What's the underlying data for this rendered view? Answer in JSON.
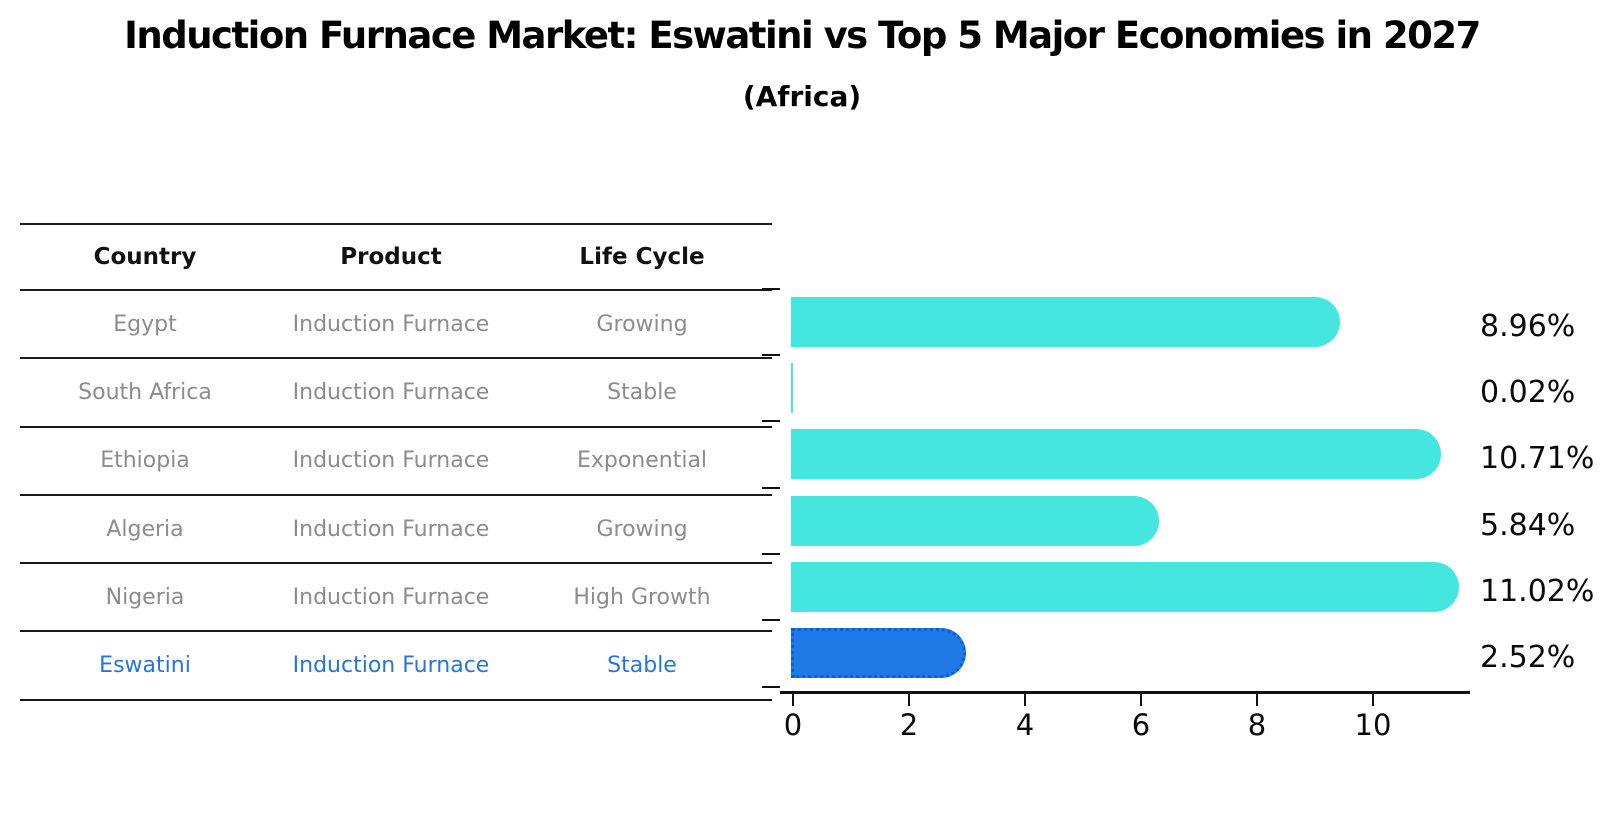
{
  "title": "Induction Furnace Market: Eswatini vs Top 5 Major Economies in 2027",
  "subtitle": "(Africa)",
  "table": {
    "headers": [
      "Country",
      "Product",
      "Life Cycle"
    ],
    "rows": [
      {
        "country": "Egypt",
        "product": "Induction Furnace",
        "life_cycle": "Growing"
      },
      {
        "country": "South Africa",
        "product": "Induction Furnace",
        "life_cycle": "Stable"
      },
      {
        "country": "Ethiopia",
        "product": "Induction Furnace",
        "life_cycle": "Exponential"
      },
      {
        "country": "Algeria",
        "product": "Induction Furnace",
        "life_cycle": "Growing"
      },
      {
        "country": "Nigeria",
        "product": "Induction Furnace",
        "life_cycle": "High Growth"
      },
      {
        "country": "Eswatini",
        "product": "Induction Furnace",
        "life_cycle": "Stable"
      }
    ]
  },
  "chart_data": {
    "type": "bar",
    "orientation": "horizontal",
    "title": "Induction Furnace Market: Eswatini vs Top 5 Major Economies in 2027 (Africa)",
    "categories": [
      "Egypt",
      "South Africa",
      "Ethiopia",
      "Algeria",
      "Nigeria",
      "Eswatini"
    ],
    "values": [
      8.96,
      0.02,
      10.71,
      5.84,
      11.02,
      2.52
    ],
    "value_labels": [
      "8.96%",
      "0.02%",
      "10.71%",
      "5.84%",
      "11.02%",
      "2.52%"
    ],
    "xlabel": "",
    "ylabel": "",
    "xticks": [
      0,
      2,
      4,
      6,
      8,
      10
    ],
    "xlim": [
      0,
      11.6
    ],
    "grid": false,
    "legend": "none",
    "highlight_index": 5,
    "bar_color": "#45e5e0",
    "highlight_color": "#1f7ae8",
    "highlight_border_color": "#0d5ecf",
    "highlight_text_color": "#2377db"
  }
}
